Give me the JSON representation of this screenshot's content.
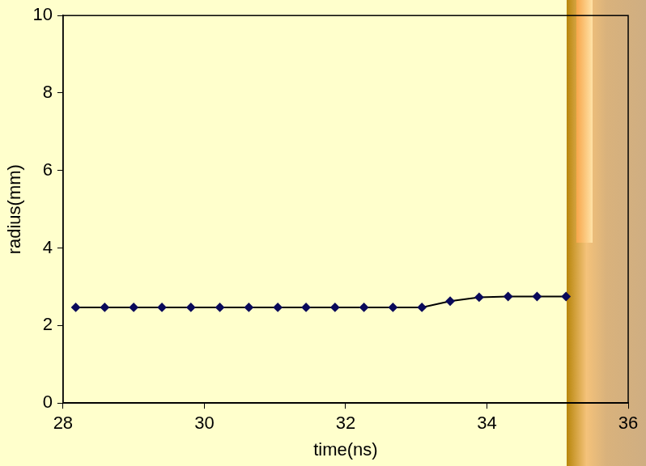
{
  "chart_data": {
    "type": "line",
    "x_label": "time(ns)",
    "y_label": "radius(mm)",
    "x": [
      28.18,
      28.59,
      29.0,
      29.4,
      29.81,
      30.22,
      30.63,
      31.04,
      31.44,
      31.85,
      32.26,
      32.67,
      33.08,
      33.48,
      33.89,
      34.3,
      34.71,
      35.12
    ],
    "series": [
      {
        "name": "radius",
        "color": "#000000",
        "values": [
          2.47,
          2.47,
          2.47,
          2.47,
          2.47,
          2.47,
          2.47,
          2.47,
          2.47,
          2.47,
          2.47,
          2.47,
          2.47,
          2.63,
          2.73,
          2.75,
          2.75,
          2.75
        ],
        "marker": "diamond",
        "line_style": "solid"
      }
    ],
    "xlim": [
      28,
      36
    ],
    "xticks": [
      28,
      30,
      32,
      34,
      36
    ],
    "ylim": [
      0,
      10
    ],
    "yticks": [
      0,
      2,
      4,
      6,
      8,
      10
    ],
    "grid": false
  }
}
